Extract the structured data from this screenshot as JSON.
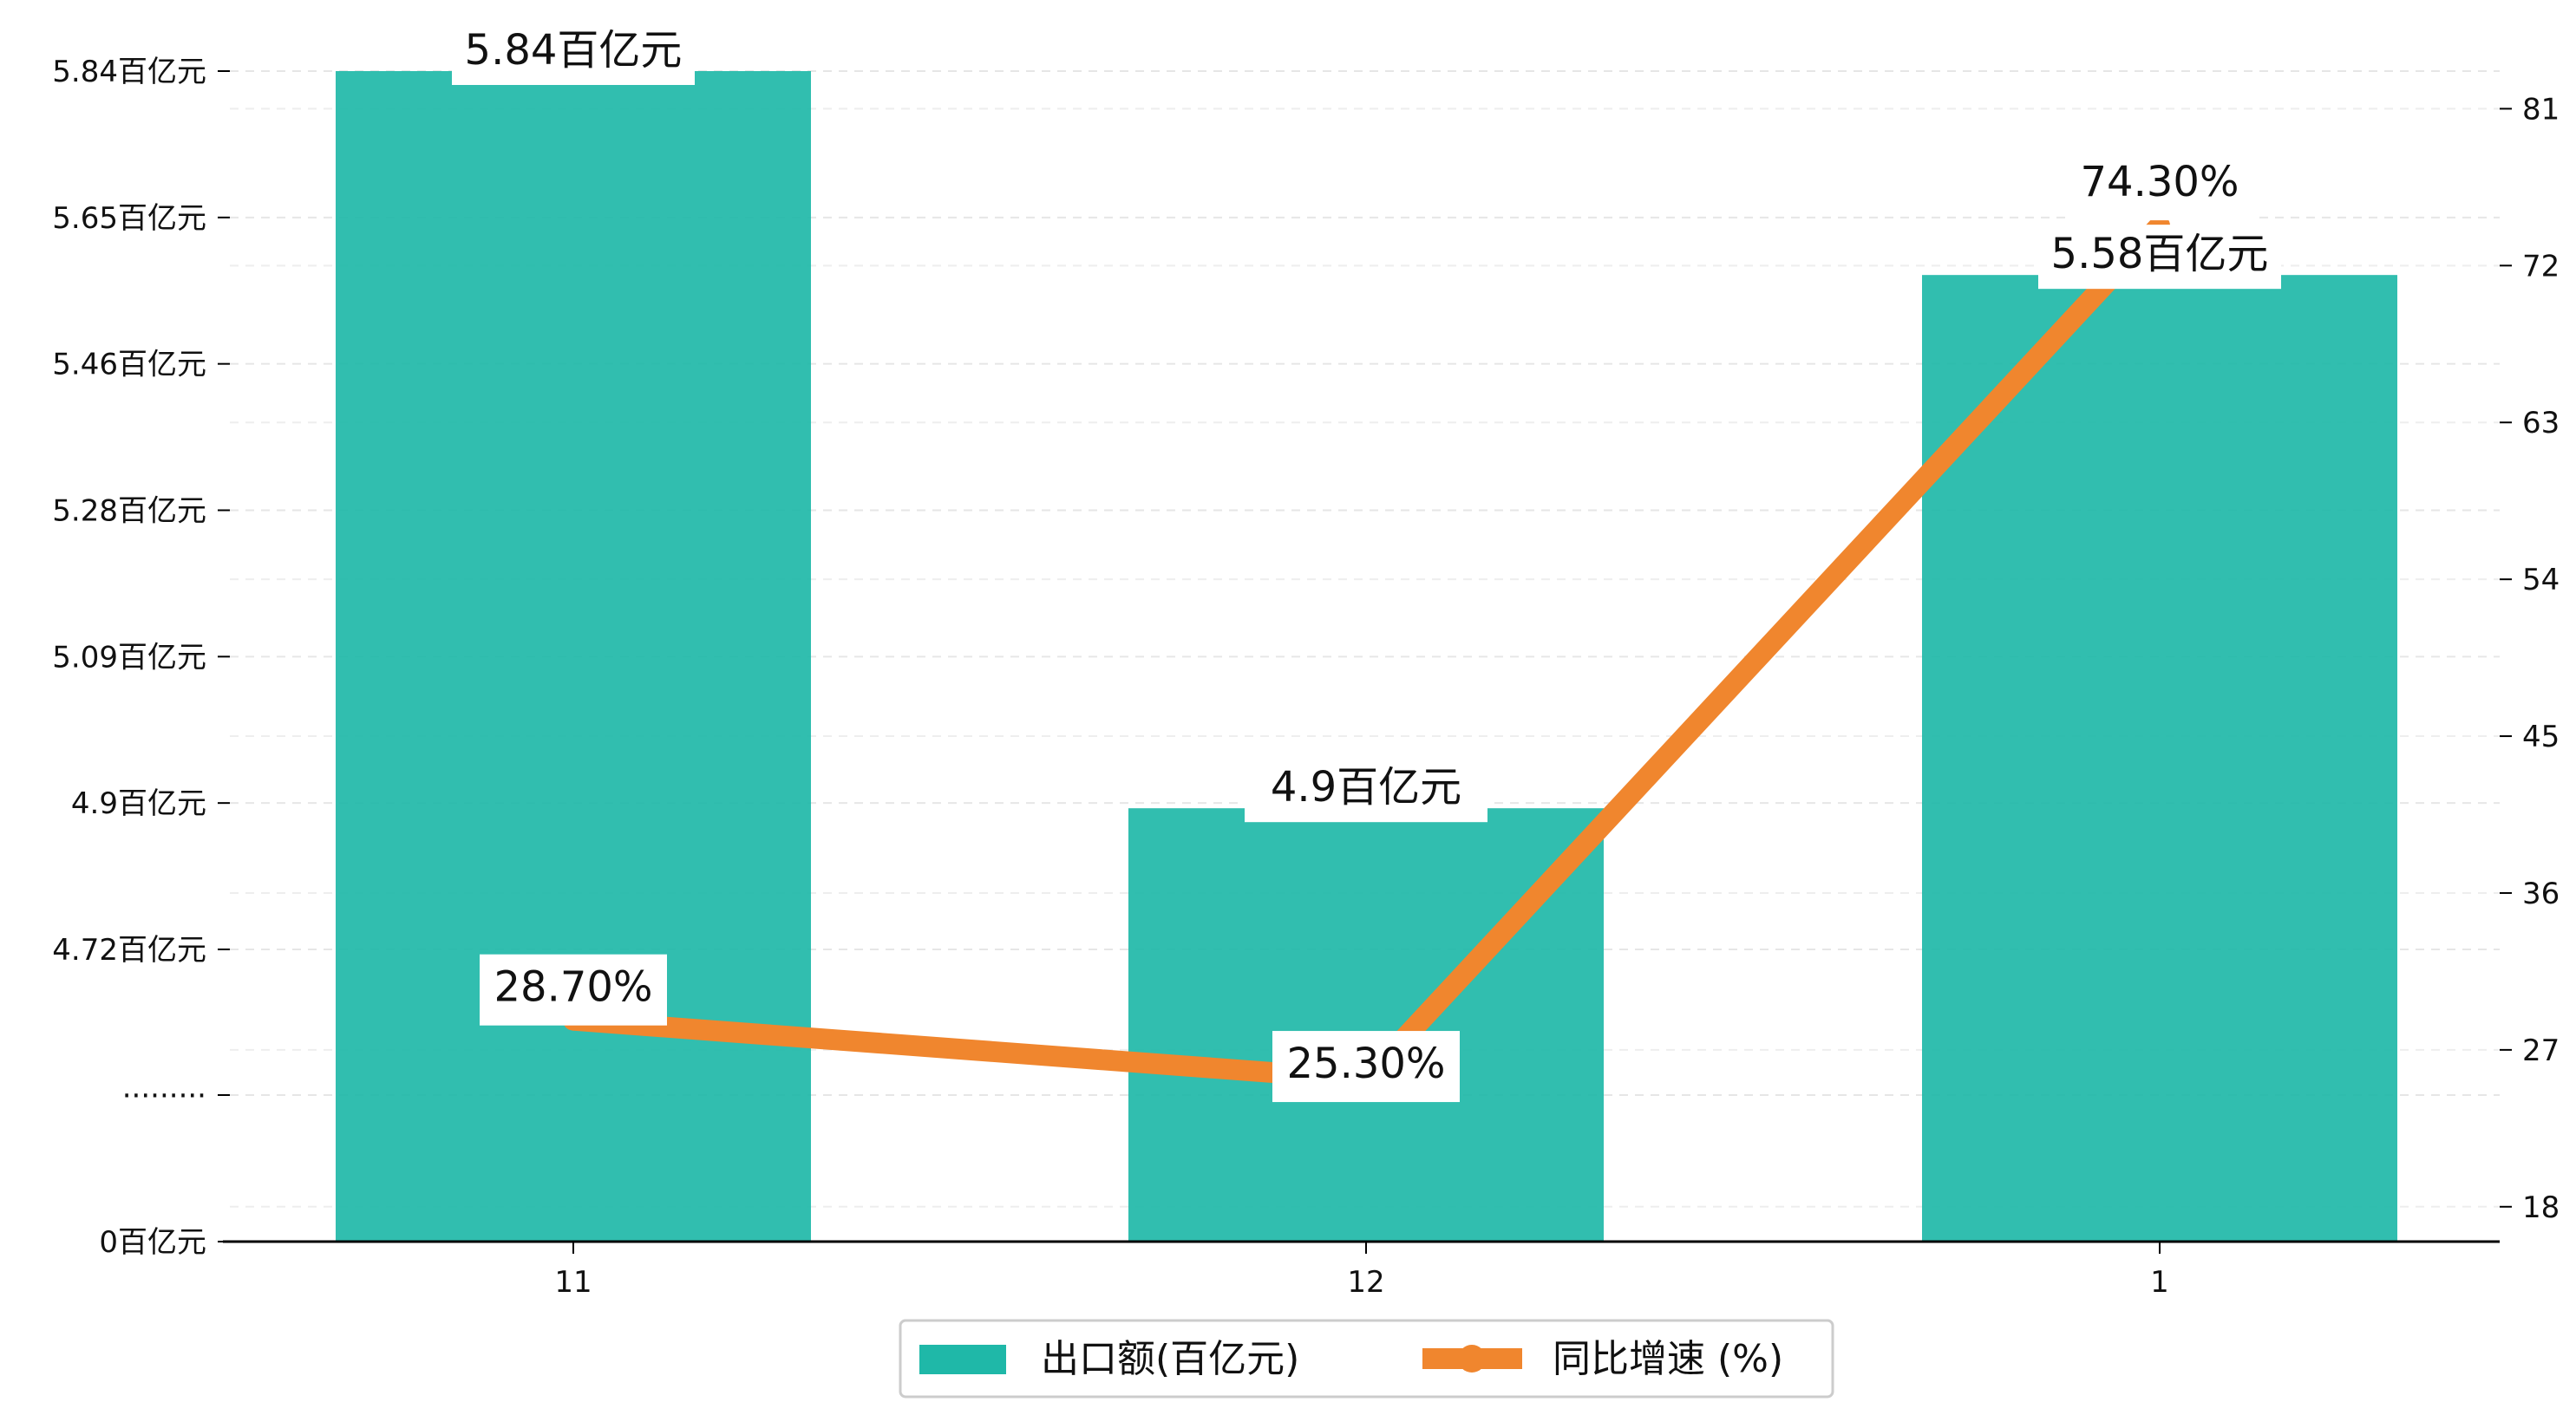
{
  "chart_data": {
    "type": "bar",
    "categories": [
      "11",
      "12",
      "1"
    ],
    "series": [
      {
        "name": "出口额(百亿元)",
        "kind": "bar",
        "axis": "left",
        "values": [
          5.84,
          4.9,
          5.58
        ],
        "labels": [
          "5.84百亿元",
          "4.9百亿元",
          "5.58百亿元"
        ],
        "color": "#1fb8a8"
      },
      {
        "name": "同比增速 (%)",
        "kind": "line",
        "axis": "right",
        "values": [
          28.7,
          25.3,
          74.3
        ],
        "labels": [
          "28.70%",
          "25.30%",
          "74.30%"
        ],
        "color": "#f0862e"
      }
    ],
    "left_axis": {
      "tick_labels": [
        "0百亿元",
        "·········",
        "4.72百亿元",
        "4.9百亿元",
        "5.09百亿元",
        "5.28百亿元",
        "5.46百亿元",
        "5.65百亿元",
        "5.84百亿元"
      ],
      "broken": true
    },
    "right_axis": {
      "ticks": [
        18,
        27,
        36,
        45,
        54,
        63,
        72,
        81
      ],
      "ylim": [
        16,
        85
      ]
    },
    "grid": "horizontal-dashed",
    "legend_position": "bottom-center"
  }
}
